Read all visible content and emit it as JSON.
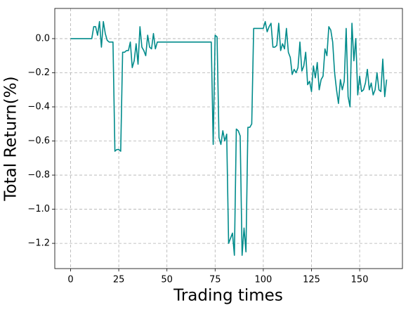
{
  "chart_data": {
    "type": "line",
    "xlabel": "Trading times",
    "ylabel": "Total Return(%)",
    "color": "#008b8b",
    "grid": true,
    "x": [
      0,
      1,
      2,
      3,
      4,
      5,
      6,
      7,
      8,
      9,
      10,
      11,
      12,
      13,
      14,
      15,
      16,
      17,
      18,
      19,
      20,
      21,
      22,
      23,
      24,
      25,
      26,
      27,
      28,
      29,
      30,
      31,
      32,
      33,
      34,
      35,
      36,
      37,
      38,
      39,
      40,
      41,
      42,
      43,
      44,
      45,
      46,
      47,
      48,
      49,
      50,
      51,
      52,
      53,
      54,
      55,
      56,
      57,
      58,
      59,
      60,
      61,
      62,
      63,
      64,
      65,
      66,
      67,
      68,
      69,
      70,
      71,
      72,
      73,
      74,
      75,
      76,
      77,
      78,
      79,
      80,
      81,
      82,
      83,
      84,
      85,
      86,
      87,
      88,
      89,
      90,
      91,
      92,
      93,
      94,
      95,
      96,
      97,
      98,
      99,
      100,
      101,
      102,
      103,
      104,
      105,
      106,
      107,
      108,
      109,
      110,
      111,
      112,
      113,
      114,
      115,
      116,
      117,
      118,
      119,
      120,
      121,
      122,
      123,
      124,
      125,
      126,
      127,
      128,
      129,
      130,
      131,
      132,
      133,
      134,
      135,
      136,
      137,
      138,
      139,
      140,
      141,
      142,
      143,
      144,
      145,
      146,
      147,
      148,
      149,
      150,
      151,
      152,
      153,
      154,
      155,
      156,
      157,
      158,
      159,
      160,
      161,
      162,
      163,
      164
    ],
    "values": [
      0,
      0,
      0,
      0,
      0,
      0,
      0,
      0,
      0,
      0,
      0,
      0,
      0.07,
      0.07,
      0.02,
      0.1,
      -0.05,
      0.1,
      0.03,
      -0.01,
      -0.02,
      -0.02,
      -0.02,
      -0.66,
      -0.65,
      -0.65,
      -0.66,
      -0.08,
      -0.08,
      -0.07,
      -0.07,
      -0.02,
      -0.17,
      -0.13,
      -0.03,
      -0.15,
      0.07,
      -0.05,
      -0.07,
      -0.1,
      0.02,
      -0.05,
      -0.06,
      0.03,
      -0.06,
      -0.02,
      -0.02,
      -0.02,
      -0.02,
      -0.02,
      -0.02,
      -0.02,
      -0.02,
      -0.02,
      -0.02,
      -0.02,
      -0.02,
      -0.02,
      -0.02,
      -0.02,
      -0.02,
      -0.02,
      -0.02,
      -0.02,
      -0.02,
      -0.02,
      -0.02,
      -0.02,
      -0.02,
      -0.02,
      -0.02,
      -0.02,
      -0.02,
      -0.02,
      -0.62,
      0.02,
      0.01,
      -0.58,
      -0.62,
      -0.54,
      -0.6,
      -0.56,
      -1.2,
      -1.17,
      -1.14,
      -1.27,
      -0.53,
      -0.54,
      -0.57,
      -1.27,
      -1.11,
      -1.25,
      -0.52,
      -0.52,
      -0.5,
      0.06,
      0.06,
      0.06,
      0.06,
      0.06,
      0.06,
      0.1,
      0.04,
      0.07,
      0.09,
      -0.05,
      -0.05,
      -0.04,
      0.09,
      -0.07,
      -0.03,
      -0.06,
      0.06,
      -0.08,
      -0.11,
      -0.21,
      -0.18,
      -0.2,
      -0.17,
      -0.02,
      -0.19,
      -0.16,
      -0.08,
      -0.27,
      -0.25,
      -0.31,
      -0.16,
      -0.23,
      -0.14,
      -0.3,
      -0.24,
      -0.22,
      -0.06,
      -0.1,
      0.07,
      0.05,
      -0.02,
      -0.2,
      -0.3,
      -0.38,
      -0.24,
      -0.3,
      -0.25,
      0.06,
      -0.34,
      -0.4,
      0.09,
      -0.13,
      0.0,
      -0.33,
      -0.22,
      -0.31,
      -0.3,
      -0.26,
      -0.18,
      -0.3,
      -0.26,
      -0.33,
      -0.3,
      -0.2,
      -0.3,
      -0.31,
      -0.12,
      -0.34,
      -0.24
    ],
    "xlim": [
      -8.2,
      172.2
    ],
    "xticks": [
      0,
      25,
      50,
      75,
      100,
      125,
      150
    ],
    "ylim": [
      -1.348,
      0.177
    ],
    "yticks": [
      {
        "value": -1.2,
        "label": "−1.2"
      },
      {
        "value": -1.0,
        "label": "−1.0"
      },
      {
        "value": -0.8,
        "label": "−0.8"
      },
      {
        "value": -0.6,
        "label": "−0.6"
      },
      {
        "value": -0.4,
        "label": "−0.4"
      },
      {
        "value": -0.2,
        "label": "−0.2"
      },
      {
        "value": 0,
        "label": "0.0"
      }
    ]
  }
}
